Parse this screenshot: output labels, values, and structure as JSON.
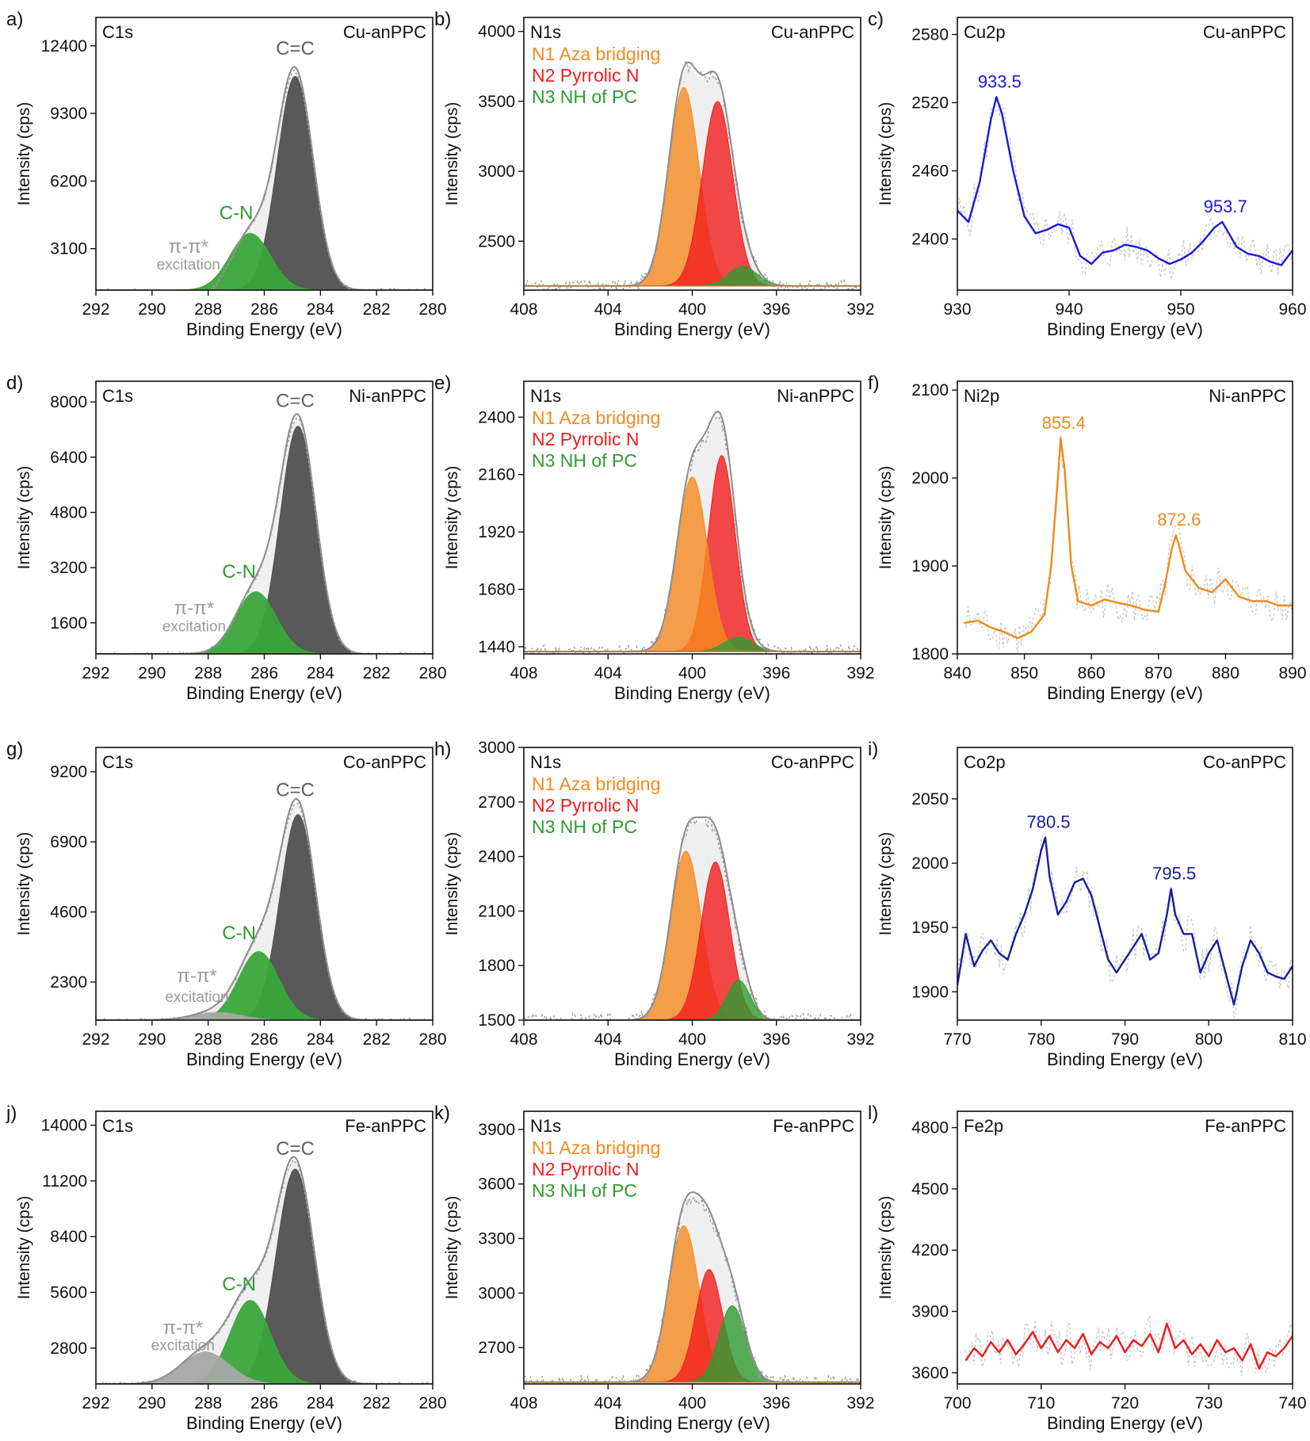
{
  "figure": {
    "colors": {
      "carbon_cc": "#505050",
      "carbon_cn": "#3aa63a",
      "carbon_pi": "#a6a6a6",
      "n1": "#f58a1f",
      "n2": "#f21d1d",
      "n3": "#2f9b2f",
      "envelope": "#8a8a8a"
    }
  },
  "chart_data": [
    {
      "id": "a",
      "panel_label": "a)",
      "type": "area",
      "element": "C1s",
      "sample": "Cu-anPPC",
      "xlabel": "Binding Energy (eV)",
      "ylabel": "Intensity (cps)",
      "xlim": [
        292,
        280
      ],
      "ylim": [
        1200,
        13700
      ],
      "xticks": [
        292,
        290,
        288,
        286,
        284,
        282,
        280
      ],
      "yticks": [
        3100,
        6200,
        9300,
        12400
      ],
      "components": [
        {
          "name": "C=C",
          "center": 284.9,
          "height": 11000,
          "fwhm": 1.5,
          "color": "#505050"
        },
        {
          "name": "C-N",
          "center": 286.5,
          "height": 3800,
          "fwhm": 1.7,
          "color": "#3aa63a"
        },
        {
          "name": "π-π* excitation",
          "center": 288.0,
          "height": 800,
          "fwhm": 2.0,
          "color": "#a6a6a6"
        }
      ],
      "annotations": [
        {
          "text": "C=C",
          "x": 284.9,
          "y": 12000,
          "color": "#606060"
        },
        {
          "text": "C-N",
          "x": 287.0,
          "y": 4450,
          "color": "#2f9b2f"
        },
        {
          "text": "π-π*",
          "x": 288.7,
          "y": 2900,
          "color": "#9a9a9a"
        },
        {
          "text": "excitation",
          "x": 288.7,
          "y": 2150,
          "color": "#9a9a9a"
        }
      ]
    },
    {
      "id": "b",
      "panel_label": "b)",
      "type": "area",
      "element": "N1s",
      "sample": "Cu-anPPC",
      "xlabel": "Binding Energy (eV)",
      "ylabel": "Intensity (cps)",
      "xlim": [
        408,
        392
      ],
      "ylim": [
        2150,
        4100
      ],
      "xticks": [
        408,
        404,
        400,
        396,
        392
      ],
      "yticks": [
        2500,
        3000,
        3500,
        4000
      ],
      "baseline": 2180,
      "components": [
        {
          "name": "N1 Aza bridging",
          "center": 400.4,
          "height": 3600,
          "fwhm": 1.7,
          "color": "#f58a1f"
        },
        {
          "name": "N2 Pyrrolic N",
          "center": 398.8,
          "height": 3500,
          "fwhm": 1.7,
          "color": "#f21d1d"
        },
        {
          "name": "N3 NH of PC",
          "center": 397.6,
          "height": 2320,
          "fwhm": 1.6,
          "color": "#2f9b2f"
        }
      ],
      "legend": [
        "N1 Aza bridging",
        "N2 Pyrrolic N",
        "N3 NH of PC"
      ]
    },
    {
      "id": "c",
      "panel_label": "c)",
      "type": "line",
      "element": "Cu2p",
      "sample": "Cu-anPPC",
      "xlabel": "Binding Energy (eV)",
      "ylabel": "Intensity (cps)",
      "xlim": [
        930,
        960
      ],
      "ylim": [
        2355,
        2595
      ],
      "xticks": [
        930,
        940,
        950,
        960
      ],
      "yticks": [
        2400,
        2460,
        2520,
        2580
      ],
      "line_color": "#1a1adb",
      "x": [
        930,
        931,
        932,
        933,
        933.5,
        934,
        935,
        936,
        937,
        938,
        939,
        940,
        941,
        942,
        943,
        944,
        945,
        946,
        947,
        948,
        949,
        950,
        951,
        952,
        953,
        953.7,
        954,
        955,
        956,
        957,
        958,
        959,
        960
      ],
      "y": [
        2425,
        2415,
        2450,
        2505,
        2525,
        2510,
        2460,
        2420,
        2405,
        2408,
        2413,
        2410,
        2385,
        2378,
        2388,
        2390,
        2395,
        2393,
        2390,
        2383,
        2378,
        2382,
        2388,
        2398,
        2410,
        2415,
        2410,
        2393,
        2387,
        2385,
        2380,
        2377,
        2390
      ],
      "peaks": [
        {
          "label": "933.5",
          "x": 933.5,
          "y": 2525
        },
        {
          "label": "953.7",
          "x": 953.7,
          "y": 2415
        }
      ]
    },
    {
      "id": "d",
      "panel_label": "d)",
      "type": "area",
      "element": "C1s",
      "sample": "Ni-anPPC",
      "xlabel": "Binding Energy (eV)",
      "ylabel": "Intensity (cps)",
      "xlim": [
        292,
        280
      ],
      "ylim": [
        700,
        8600
      ],
      "xticks": [
        292,
        290,
        288,
        286,
        284,
        282,
        280
      ],
      "yticks": [
        1600,
        3200,
        4800,
        6400,
        8000
      ],
      "components": [
        {
          "name": "C=C",
          "center": 284.8,
          "height": 7300,
          "fwhm": 1.5,
          "color": "#505050"
        },
        {
          "name": "C-N",
          "center": 286.3,
          "height": 2500,
          "fwhm": 1.7,
          "color": "#3aa63a"
        },
        {
          "name": "π-π* excitation",
          "center": 287.8,
          "height": 700,
          "fwhm": 2.0,
          "color": "#a6a6a6"
        }
      ],
      "annotations": [
        {
          "text": "C=C",
          "x": 284.9,
          "y": 7850,
          "color": "#606060"
        },
        {
          "text": "C-N",
          "x": 286.9,
          "y": 2900,
          "color": "#2f9b2f"
        },
        {
          "text": "π-π*",
          "x": 288.5,
          "y": 1850,
          "color": "#9a9a9a"
        },
        {
          "text": "excitation",
          "x": 288.5,
          "y": 1350,
          "color": "#9a9a9a"
        }
      ]
    },
    {
      "id": "e",
      "panel_label": "e)",
      "type": "area",
      "element": "N1s",
      "sample": "Ni-anPPC",
      "xlabel": "Binding Energy (eV)",
      "ylabel": "Intensity (cps)",
      "xlim": [
        408,
        392
      ],
      "ylim": [
        1410,
        2550
      ],
      "xticks": [
        408,
        404,
        400,
        396,
        392
      ],
      "yticks": [
        1440,
        1680,
        1920,
        2160,
        2400
      ],
      "baseline": 1420,
      "components": [
        {
          "name": "N1 Aza bridging",
          "center": 400.0,
          "height": 2150,
          "fwhm": 1.7,
          "color": "#f58a1f"
        },
        {
          "name": "N2 Pyrrolic N",
          "center": 398.6,
          "height": 2240,
          "fwhm": 1.5,
          "color": "#f21d1d"
        },
        {
          "name": "N3 NH of PC",
          "center": 397.8,
          "height": 1480,
          "fwhm": 1.6,
          "color": "#2f9b2f"
        }
      ],
      "legend": [
        "N1 Aza bridging",
        "N2 Pyrrolic N",
        "N3 NH of PC"
      ]
    },
    {
      "id": "f",
      "panel_label": "f)",
      "type": "line",
      "element": "Ni2p",
      "sample": "Ni-anPPC",
      "xlabel": "Binding Energy (eV)",
      "ylabel": "Intensity (cps)",
      "xlim": [
        840,
        890
      ],
      "ylim": [
        1800,
        2110
      ],
      "xticks": [
        840,
        850,
        860,
        870,
        880,
        890
      ],
      "yticks": [
        1800,
        1900,
        2000,
        2100
      ],
      "line_color": "#f08a1a",
      "x": [
        841,
        843,
        845,
        847,
        849,
        851,
        853,
        854,
        855,
        855.4,
        856,
        857,
        858,
        860,
        862,
        864,
        866,
        868,
        870,
        871,
        872,
        872.6,
        873,
        874,
        876,
        878,
        880,
        882,
        884,
        886,
        888,
        890
      ],
      "y": [
        1835,
        1838,
        1830,
        1825,
        1818,
        1825,
        1845,
        1900,
        2000,
        2045,
        2010,
        1900,
        1860,
        1855,
        1862,
        1858,
        1855,
        1850,
        1848,
        1880,
        1920,
        1935,
        1925,
        1895,
        1875,
        1870,
        1885,
        1865,
        1860,
        1860,
        1855,
        1855
      ],
      "peaks": [
        {
          "label": "855.4",
          "x": 855.4,
          "y": 2045
        },
        {
          "label": "872.6",
          "x": 872.6,
          "y": 1935
        }
      ]
    },
    {
      "id": "g",
      "panel_label": "g)",
      "type": "area",
      "element": "C1s",
      "sample": "Co-anPPC",
      "xlabel": "Binding Energy (eV)",
      "ylabel": "Intensity (cps)",
      "xlim": [
        292,
        280
      ],
      "ylim": [
        1050,
        10000
      ],
      "xticks": [
        292,
        290,
        288,
        286,
        284,
        282,
        280
      ],
      "yticks": [
        2300,
        4600,
        6900,
        9200
      ],
      "components": [
        {
          "name": "C=C",
          "center": 284.8,
          "height": 7800,
          "fwhm": 1.5,
          "color": "#505050"
        },
        {
          "name": "C-N",
          "center": 286.2,
          "height": 3300,
          "fwhm": 1.7,
          "color": "#3aa63a"
        },
        {
          "name": "π-π* excitation",
          "center": 287.7,
          "height": 1300,
          "fwhm": 2.0,
          "color": "#a6a6a6"
        }
      ],
      "annotations": [
        {
          "text": "C=C",
          "x": 284.9,
          "y": 8400,
          "color": "#606060"
        },
        {
          "text": "C-N",
          "x": 286.9,
          "y": 3700,
          "color": "#2f9b2f"
        },
        {
          "text": "π-π*",
          "x": 288.4,
          "y": 2300,
          "color": "#9a9a9a"
        },
        {
          "text": "excitation",
          "x": 288.4,
          "y": 1650,
          "color": "#9a9a9a"
        }
      ]
    },
    {
      "id": "h",
      "panel_label": "h)",
      "type": "area",
      "element": "N1s",
      "sample": "Co-anPPC",
      "xlabel": "Binding Energy (eV)",
      "ylabel": "Intensity (cps)",
      "xlim": [
        408,
        392
      ],
      "ylim": [
        1500,
        3000
      ],
      "xticks": [
        408,
        404,
        400,
        396,
        392
      ],
      "yticks": [
        1500,
        1800,
        2100,
        2400,
        2700,
        3000
      ],
      "baseline": 1500,
      "components": [
        {
          "name": "N1 Aza bridging",
          "center": 400.3,
          "height": 2430,
          "fwhm": 1.7,
          "color": "#f58a1f"
        },
        {
          "name": "N2 Pyrrolic N",
          "center": 398.9,
          "height": 2370,
          "fwhm": 1.6,
          "color": "#f21d1d"
        },
        {
          "name": "N3 NH of PC",
          "center": 397.8,
          "height": 1720,
          "fwhm": 1.3,
          "color": "#2f9b2f"
        }
      ],
      "legend": [
        "N1 Aza bridging",
        "N2 Pyrrolic N",
        "N3 NH of PC"
      ]
    },
    {
      "id": "i",
      "panel_label": "i)",
      "type": "line",
      "element": "Co2p",
      "sample": "Co-anPPC",
      "xlabel": "Binding Energy (eV)",
      "ylabel": "Intensity (cps)",
      "xlim": [
        770,
        810
      ],
      "ylim": [
        1878,
        2090
      ],
      "xticks": [
        770,
        780,
        790,
        800,
        810
      ],
      "yticks": [
        1900,
        1950,
        2000,
        2050
      ],
      "line_color": "#14209a",
      "x": [
        770,
        771,
        772,
        773,
        774,
        775,
        776,
        777,
        778,
        779,
        780,
        780.5,
        781,
        782,
        783,
        784,
        785,
        786,
        787,
        788,
        789,
        790,
        791,
        792,
        793,
        794,
        795,
        795.5,
        796,
        797,
        798,
        799,
        800,
        801,
        802,
        803,
        804,
        805,
        806,
        807,
        808,
        809,
        810
      ],
      "y": [
        1905,
        1945,
        1920,
        1932,
        1940,
        1930,
        1925,
        1945,
        1960,
        1980,
        2010,
        2020,
        1990,
        1960,
        1970,
        1985,
        1988,
        1975,
        1950,
        1925,
        1915,
        1925,
        1935,
        1945,
        1925,
        1930,
        1960,
        1980,
        1960,
        1945,
        1945,
        1915,
        1930,
        1940,
        1915,
        1890,
        1920,
        1940,
        1930,
        1915,
        1912,
        1910,
        1920
      ],
      "peaks": [
        {
          "label": "780.5",
          "x": 780.5,
          "y": 2020
        },
        {
          "label": "795.5",
          "x": 795.5,
          "y": 1980
        }
      ]
    },
    {
      "id": "j",
      "panel_label": "j)",
      "type": "area",
      "element": "C1s",
      "sample": "Fe-anPPC",
      "xlabel": "Binding Energy (eV)",
      "ylabel": "Intensity (cps)",
      "xlim": [
        292,
        280
      ],
      "ylim": [
        1000,
        14700
      ],
      "xticks": [
        292,
        290,
        288,
        286,
        284,
        282,
        280
      ],
      "yticks": [
        2800,
        5600,
        8400,
        11200,
        14000
      ],
      "components": [
        {
          "name": "C=C",
          "center": 284.9,
          "height": 11800,
          "fwhm": 1.6,
          "color": "#505050"
        },
        {
          "name": "C-N",
          "center": 286.5,
          "height": 5200,
          "fwhm": 1.7,
          "color": "#3aa63a"
        },
        {
          "name": "π-π* excitation",
          "center": 288.1,
          "height": 2600,
          "fwhm": 2.0,
          "color": "#a6a6a6"
        }
      ],
      "annotations": [
        {
          "text": "C=C",
          "x": 284.9,
          "y": 12500,
          "color": "#606060"
        },
        {
          "text": "C-N",
          "x": 286.9,
          "y": 5700,
          "color": "#2f9b2f"
        },
        {
          "text": "π-π*",
          "x": 288.9,
          "y": 3500,
          "color": "#9a9a9a"
        },
        {
          "text": "excitation",
          "x": 288.9,
          "y": 2700,
          "color": "#9a9a9a"
        }
      ]
    },
    {
      "id": "k",
      "panel_label": "k)",
      "type": "area",
      "element": "N1s",
      "sample": "Fe-anPPC",
      "xlabel": "Binding Energy (eV)",
      "ylabel": "Intensity (cps)",
      "xlim": [
        408,
        392
      ],
      "ylim": [
        2500,
        4000
      ],
      "xticks": [
        408,
        404,
        400,
        396,
        392
      ],
      "yticks": [
        2700,
        3000,
        3300,
        3600,
        3900
      ],
      "baseline": 2510,
      "components": [
        {
          "name": "N1 Aza bridging",
          "center": 400.4,
          "height": 3370,
          "fwhm": 1.7,
          "color": "#f58a1f"
        },
        {
          "name": "N2 Pyrrolic N",
          "center": 399.2,
          "height": 3130,
          "fwhm": 1.5,
          "color": "#f21d1d"
        },
        {
          "name": "N3 NH of PC",
          "center": 398.1,
          "height": 2930,
          "fwhm": 1.5,
          "color": "#2f9b2f"
        }
      ],
      "legend": [
        "N1 Aza bridging",
        "N2 Pyrrolic N",
        "N3 NH of PC"
      ]
    },
    {
      "id": "l",
      "panel_label": "l)",
      "type": "line",
      "element": "Fe2p",
      "sample": "Fe-anPPC",
      "xlabel": "Binding Energy (eV)",
      "ylabel": "Intensity (cps)",
      "xlim": [
        700,
        740
      ],
      "ylim": [
        3545,
        4880
      ],
      "xticks": [
        700,
        710,
        720,
        730,
        740
      ],
      "yticks": [
        3600,
        3900,
        4200,
        4500,
        4800
      ],
      "line_color": "#ee1b1b",
      "x": [
        701,
        702,
        703,
        704,
        705,
        706,
        707,
        708,
        709,
        710,
        711,
        712,
        713,
        714,
        715,
        716,
        717,
        718,
        719,
        720,
        721,
        722,
        723,
        724,
        725,
        726,
        727,
        728,
        729,
        730,
        731,
        732,
        733,
        734,
        735,
        736,
        737,
        738,
        739,
        740
      ],
      "y": [
        3660,
        3720,
        3680,
        3750,
        3700,
        3760,
        3690,
        3740,
        3800,
        3720,
        3780,
        3700,
        3760,
        3720,
        3790,
        3690,
        3750,
        3720,
        3780,
        3700,
        3760,
        3730,
        3790,
        3700,
        3840,
        3720,
        3760,
        3690,
        3740,
        3680,
        3760,
        3700,
        3720,
        3660,
        3740,
        3620,
        3700,
        3680,
        3720,
        3780
      ],
      "peaks": []
    }
  ]
}
